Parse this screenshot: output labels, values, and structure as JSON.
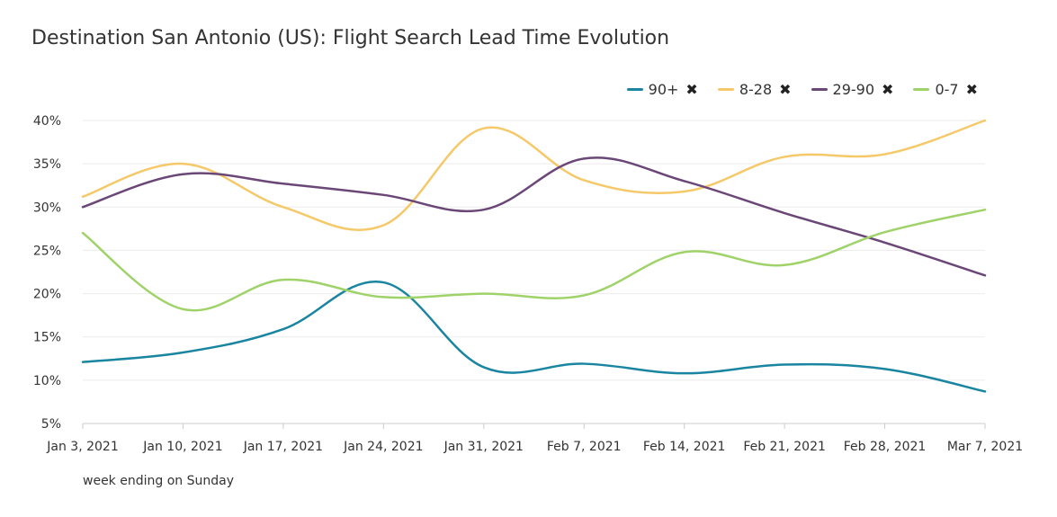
{
  "chart_data": {
    "type": "line",
    "title": "Destination San Antonio (US): Flight Search Lead Time Evolution",
    "xlabel": "week ending on Sunday",
    "ylabel": "",
    "categories": [
      "Jan 3, 2021",
      "Jan 10, 2021",
      "Jan 17, 2021",
      "Jan 24, 2021",
      "Jan 31, 2021",
      "Feb 7, 2021",
      "Feb 14, 2021",
      "Feb 21, 2021",
      "Feb 28, 2021",
      "Mar 7, 2021"
    ],
    "y_ticks": [
      "5%",
      "10%",
      "15%",
      "20%",
      "25%",
      "30%",
      "35%",
      "40%"
    ],
    "ylim": [
      5,
      40
    ],
    "grid": true,
    "legend_position": "top-right",
    "series": [
      {
        "name": "90+",
        "color": "#1a85a0",
        "values": [
          12.1,
          13.2,
          15.9,
          21.3,
          11.5,
          11.9,
          10.8,
          11.8,
          11.3,
          8.7
        ]
      },
      {
        "name": "8-28",
        "color": "#f5c969",
        "values": [
          31.2,
          35.0,
          30.0,
          27.9,
          39.1,
          33.1,
          31.8,
          35.8,
          36.1,
          40.0
        ]
      },
      {
        "name": "29-90",
        "color": "#6b4777",
        "values": [
          30.0,
          33.8,
          32.7,
          31.4,
          29.7,
          35.6,
          33.0,
          29.3,
          25.9,
          22.1
        ]
      },
      {
        "name": "0-7",
        "color": "#9fd36a",
        "values": [
          27.0,
          18.2,
          21.6,
          19.6,
          20.0,
          19.8,
          24.8,
          23.3,
          27.1,
          29.7
        ]
      }
    ],
    "legend_remove_glyph": "✖"
  }
}
